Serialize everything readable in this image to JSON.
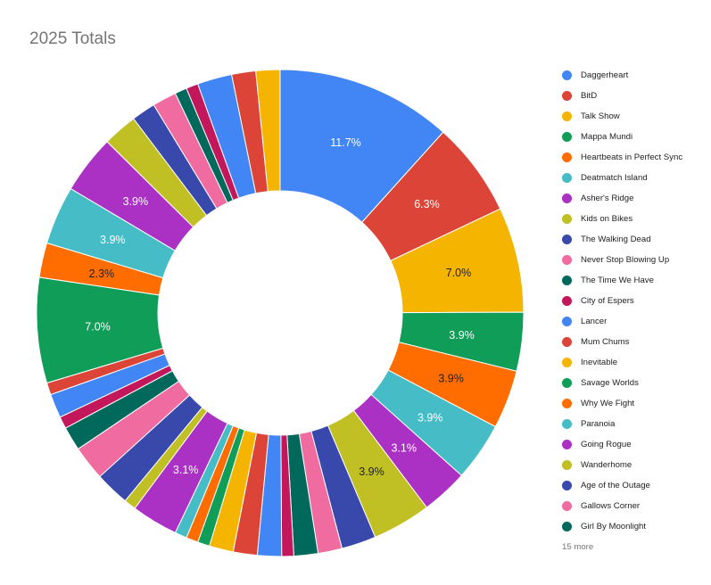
{
  "chart_data": {
    "type": "pie",
    "title": "2025 Totals",
    "donut": true,
    "legend_position": "right",
    "more_label": "15 more",
    "slices": [
      {
        "name": "Daggerheart",
        "value": 11.7,
        "label": "11.7%",
        "color": "#4285f4"
      },
      {
        "name": "BitD",
        "value": 6.3,
        "label": "6.3%",
        "color": "#db4437"
      },
      {
        "name": "Talk Show",
        "value": 7.0,
        "label": "7.0%",
        "color": "#f4b400"
      },
      {
        "name": "Mappa Mundi",
        "value": 3.9,
        "label": "3.9%",
        "color": "#0f9d58"
      },
      {
        "name": "Heartbeats in Perfect Sync",
        "value": 3.9,
        "label": "3.9%",
        "color": "#ff6d00"
      },
      {
        "name": "Deatmatch Island",
        "value": 3.9,
        "label": "3.9%",
        "color": "#46bdc6"
      },
      {
        "name": "Asher's Ridge",
        "value": 3.1,
        "label": "3.1%",
        "color": "#ab30c4"
      },
      {
        "name": "Kids on Bikes",
        "value": 3.9,
        "label": "3.9%",
        "color": "#c0bf24"
      },
      {
        "name": "The Walking Dead",
        "value": 2.3,
        "label": "",
        "color": "#3949ab"
      },
      {
        "name": "Never Stop Blowing Up",
        "value": 1.6,
        "label": "",
        "color": "#f06ba0"
      },
      {
        "name": "The Time We Have",
        "value": 1.6,
        "label": "",
        "color": "#00695c"
      },
      {
        "name": "City of Espers",
        "value": 0.8,
        "label": "",
        "color": "#c2185b"
      },
      {
        "name": "Lancer",
        "value": 1.6,
        "label": "",
        "color": "#4285f4"
      },
      {
        "name": "Mum Chums",
        "value": 1.6,
        "label": "",
        "color": "#db4437"
      },
      {
        "name": "Inevitable",
        "value": 1.6,
        "label": "",
        "color": "#f4b400"
      },
      {
        "name": "Savage Worlds",
        "value": 0.8,
        "label": "",
        "color": "#0f9d58"
      },
      {
        "name": "Why We Fight",
        "value": 0.8,
        "label": "",
        "color": "#ff6d00"
      },
      {
        "name": "Paranoia",
        "value": 0.8,
        "label": "",
        "color": "#46bdc6"
      },
      {
        "name": "Going Rogue",
        "value": 3.1,
        "label": "3.1%",
        "color": "#ab30c4"
      },
      {
        "name": "Wanderhome",
        "value": 0.8,
        "label": "",
        "color": "#c0bf24"
      },
      {
        "name": "Age of the Outage",
        "value": 2.3,
        "label": "",
        "color": "#3949ab"
      },
      {
        "name": "Gallows Corner",
        "value": 2.3,
        "label": "",
        "color": "#f06ba0"
      },
      {
        "name": "Girl By Moonlight",
        "value": 1.6,
        "label": "",
        "color": "#00695c"
      },
      {
        "name": "",
        "value": 0.8,
        "label": "",
        "color": "#c2185b"
      },
      {
        "name": "",
        "value": 1.6,
        "label": "",
        "color": "#4285f4"
      },
      {
        "name": "",
        "value": 0.8,
        "label": "",
        "color": "#db4437"
      },
      {
        "name": "",
        "value": 7.0,
        "label": "7.0%",
        "color": "#0f9d58"
      },
      {
        "name": "",
        "value": 2.3,
        "label": "2.3%",
        "color": "#ff6d00"
      },
      {
        "name": "",
        "value": 3.9,
        "label": "3.9%",
        "color": "#46bdc6"
      },
      {
        "name": "",
        "value": 3.9,
        "label": "3.9%",
        "color": "#ab30c4"
      },
      {
        "name": "",
        "value": 2.3,
        "label": "",
        "color": "#c0bf24"
      },
      {
        "name": "",
        "value": 1.6,
        "label": "",
        "color": "#3949ab"
      },
      {
        "name": "",
        "value": 1.6,
        "label": "",
        "color": "#f06ba0"
      },
      {
        "name": "",
        "value": 0.8,
        "label": "",
        "color": "#00695c"
      },
      {
        "name": "",
        "value": 0.8,
        "label": "",
        "color": "#c2185b"
      },
      {
        "name": "",
        "value": 2.3,
        "label": "",
        "color": "#4285f4"
      },
      {
        "name": "",
        "value": 1.6,
        "label": "",
        "color": "#db4437"
      },
      {
        "name": "",
        "value": 1.6,
        "label": "",
        "color": "#f4b400"
      }
    ]
  }
}
